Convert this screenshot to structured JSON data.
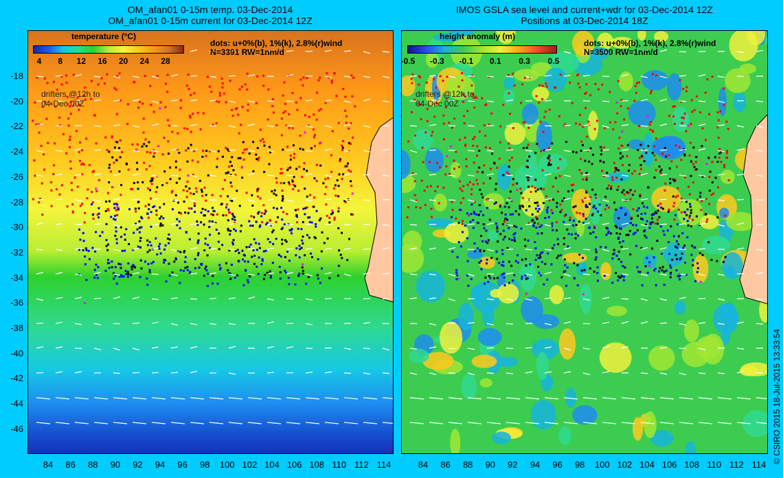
{
  "left": {
    "title_line1": "OM_afan01 0-15m temp. 03-Dec-2014",
    "title_line2": "OM_afan01 0-15m current for 03-Dec-2014 12Z",
    "legend_title": "temperature (°C)",
    "colorbar_ticks": [
      "4",
      "8",
      "12",
      "16",
      "20",
      "24",
      "28"
    ],
    "note_line1": "dots: u+0%(b), 1%(k), 2.8%(r)wind",
    "note_line2": "N=3391 RW=1nm/d",
    "drifters_line1": "drifters @12h to",
    "drifters_line2": "04-Dec 00Z"
  },
  "right": {
    "title_line1": "IMOS GSLA sea level and current+wdr for 03-Dec-2014 12Z",
    "title_line2": "Positions at 03-Dec-2014 18Z",
    "legend_title": "height anomaly (m)",
    "colorbar_ticks": [
      "-0.5",
      "-0.3",
      "-0.1",
      "0.1",
      "0.3",
      "0.5"
    ],
    "note_line1": "dots: u+0%(b), 1%(k), 2.8%(r)wind",
    "note_line2": "N=3500 RW=1nm/d",
    "drifters_line1": "drifters @12h to",
    "drifters_line2": "04-Dec 00Z"
  },
  "y_axis_labels": [
    "-18",
    "-20",
    "-22",
    "-24",
    "-26",
    "-28",
    "-30",
    "-32",
    "-34",
    "-36",
    "-38",
    "-40",
    "-42",
    "-44",
    "-46"
  ],
  "x_axis_labels": [
    "84",
    "86",
    "88",
    "90",
    "92",
    "94",
    "96",
    "98",
    "100",
    "102",
    "104",
    "106",
    "108",
    "110",
    "112",
    "114"
  ],
  "credit": "© CSIRO 2015   18-Jul-2015 13:33:54",
  "colors": {
    "background": "#00ccff",
    "land": "#ffc8a0",
    "blue_dots": "#0000ff",
    "black_dots": "#000000",
    "red_dots": "#ff0000",
    "magenta_dots": "#ff00ff"
  }
}
